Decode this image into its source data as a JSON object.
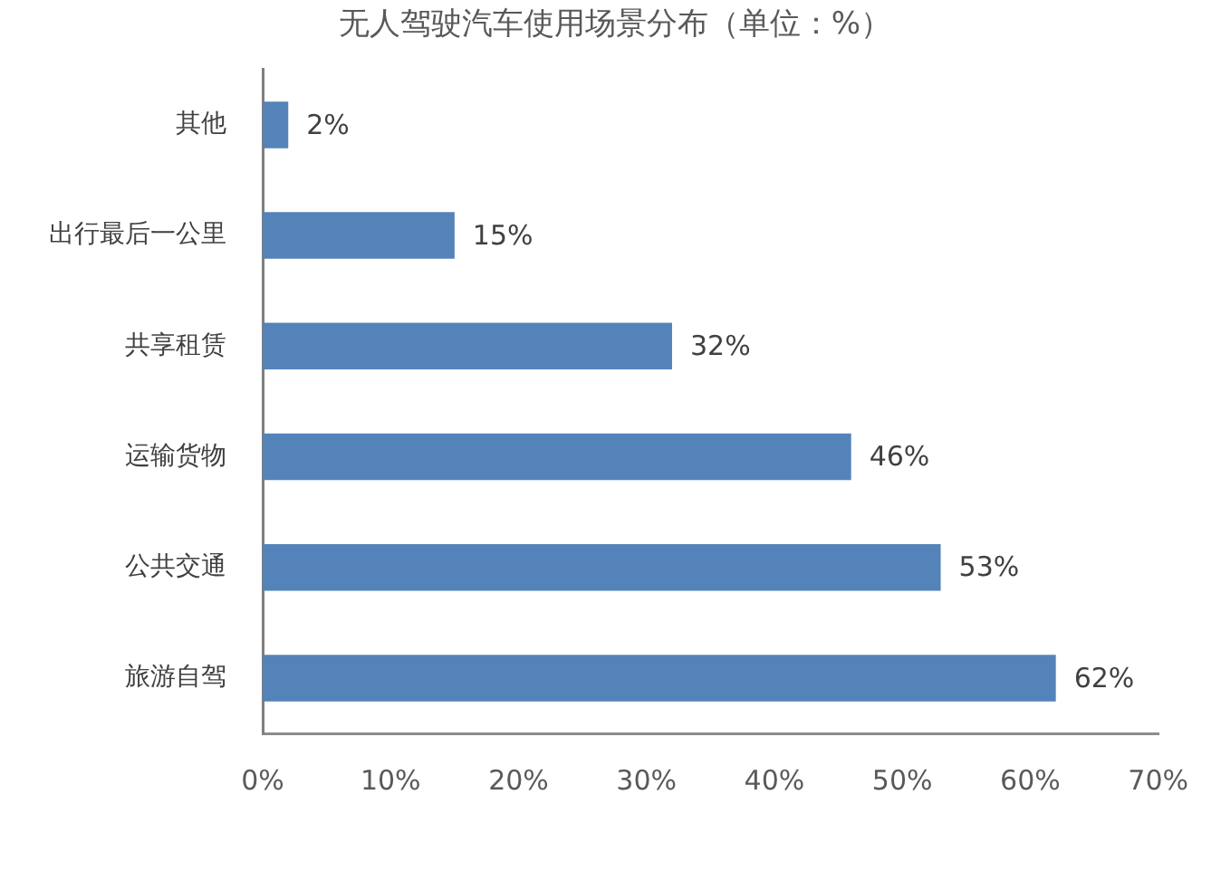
{
  "chart_data": {
    "type": "bar",
    "orientation": "horizontal",
    "title": "无人驾驶汽车使用场景分布（单位：%）",
    "categories": [
      "其他",
      "出行最后一公里",
      "共享租赁",
      "运输货物",
      "公共交通",
      "旅游自驾"
    ],
    "values": [
      2,
      15,
      32,
      46,
      53,
      62
    ],
    "color": "#5483b9",
    "value_labels": [
      "2%",
      "15%",
      "32%",
      "46%",
      "53%",
      "62%"
    ],
    "xlim": [
      0,
      70
    ],
    "xticks": [
      {
        "value": 0,
        "label": "0%"
      },
      {
        "value": 10,
        "label": "10%"
      },
      {
        "value": 20,
        "label": "20%"
      },
      {
        "value": 30,
        "label": "30%"
      },
      {
        "value": 40,
        "label": "40%"
      },
      {
        "value": 50,
        "label": "50%"
      },
      {
        "value": 60,
        "label": "60%"
      },
      {
        "value": 70,
        "label": "70%"
      }
    ],
    "grid": false,
    "legend": false
  }
}
